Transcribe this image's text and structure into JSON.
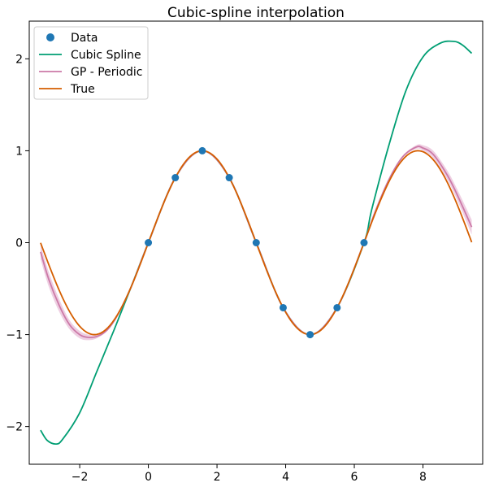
{
  "chart_data": {
    "type": "line",
    "title": "Cubic-spline interpolation",
    "xlabel": "",
    "ylabel": "",
    "xlim": [
      -3.47,
      9.74
    ],
    "ylim": [
      -2.41,
      2.41
    ],
    "xticks": [
      -2,
      0,
      2,
      4,
      6,
      8
    ],
    "xtick_labels": [
      "−2",
      "0",
      "2",
      "4",
      "6",
      "8"
    ],
    "yticks": [
      -2,
      -1,
      0,
      1,
      2
    ],
    "ytick_labels": [
      "−2",
      "−1",
      "0",
      "1",
      "2"
    ],
    "grid": false,
    "legend_position": "top-left",
    "legend": [
      "Data",
      "Cubic Spline",
      "GP - Periodic",
      "True"
    ],
    "colors": {
      "data": "#1f77b4",
      "cubic_spline": "#009e73",
      "gp_periodic": "#cc79a7",
      "gp_band": "#e8bfd8",
      "true": "#d55e00"
    },
    "data_points": {
      "x": [
        0.0,
        0.785,
        1.571,
        2.356,
        3.142,
        3.927,
        4.712,
        5.498,
        6.283
      ],
      "y": [
        0.0,
        0.707,
        1.0,
        0.707,
        0.0,
        -0.707,
        -1.0,
        -0.707,
        0.0
      ]
    },
    "cubic_spline": {
      "x": [
        -3.14,
        -2.95,
        -2.7,
        -2.5,
        -2.0,
        -1.5,
        -1.0,
        -0.5,
        0.0,
        0.785,
        1.571,
        2.356,
        3.142,
        3.927,
        4.712,
        5.498,
        6.283,
        6.5,
        7.0,
        7.5,
        8.0,
        8.5,
        8.9,
        9.15,
        9.42
      ],
      "y": [
        -2.04,
        -2.15,
        -2.19,
        -2.14,
        -1.85,
        -1.4,
        -0.95,
        -0.48,
        0.0,
        0.707,
        1.0,
        0.707,
        0.0,
        -0.707,
        -1.0,
        -0.707,
        0.0,
        0.35,
        1.05,
        1.65,
        2.02,
        2.17,
        2.19,
        2.15,
        2.06
      ]
    },
    "gp_periodic": {
      "x": [
        -3.14,
        -2.9,
        -2.6,
        -2.3,
        -2.0,
        -1.75,
        -1.5,
        -1.2,
        -0.9,
        -0.5,
        0.0,
        0.785,
        1.571,
        2.356,
        3.142,
        3.927,
        4.712,
        5.498,
        6.283,
        6.6,
        7.0,
        7.4,
        7.8,
        8.0,
        8.3,
        8.7,
        9.0,
        9.42
      ],
      "y": [
        -0.1,
        -0.4,
        -0.68,
        -0.89,
        -1.0,
        -1.03,
        -1.02,
        -0.95,
        -0.79,
        -0.48,
        0.0,
        0.707,
        1.0,
        0.707,
        0.0,
        -0.707,
        -1.0,
        -0.707,
        0.0,
        0.33,
        0.68,
        0.93,
        1.04,
        1.03,
        0.96,
        0.74,
        0.52,
        0.17
      ],
      "band_halfwidth": [
        0.08,
        0.08,
        0.07,
        0.05,
        0.04,
        0.03,
        0.02,
        0.01,
        0.01,
        0.0,
        0.0,
        0.0,
        0.0,
        0.0,
        0.0,
        0.0,
        0.0,
        0.0,
        0.0,
        0.0,
        0.01,
        0.01,
        0.02,
        0.03,
        0.04,
        0.05,
        0.06,
        0.08
      ]
    },
    "true_function": "sin(x)",
    "true_x_range": [
      -3.14,
      9.42
    ]
  }
}
